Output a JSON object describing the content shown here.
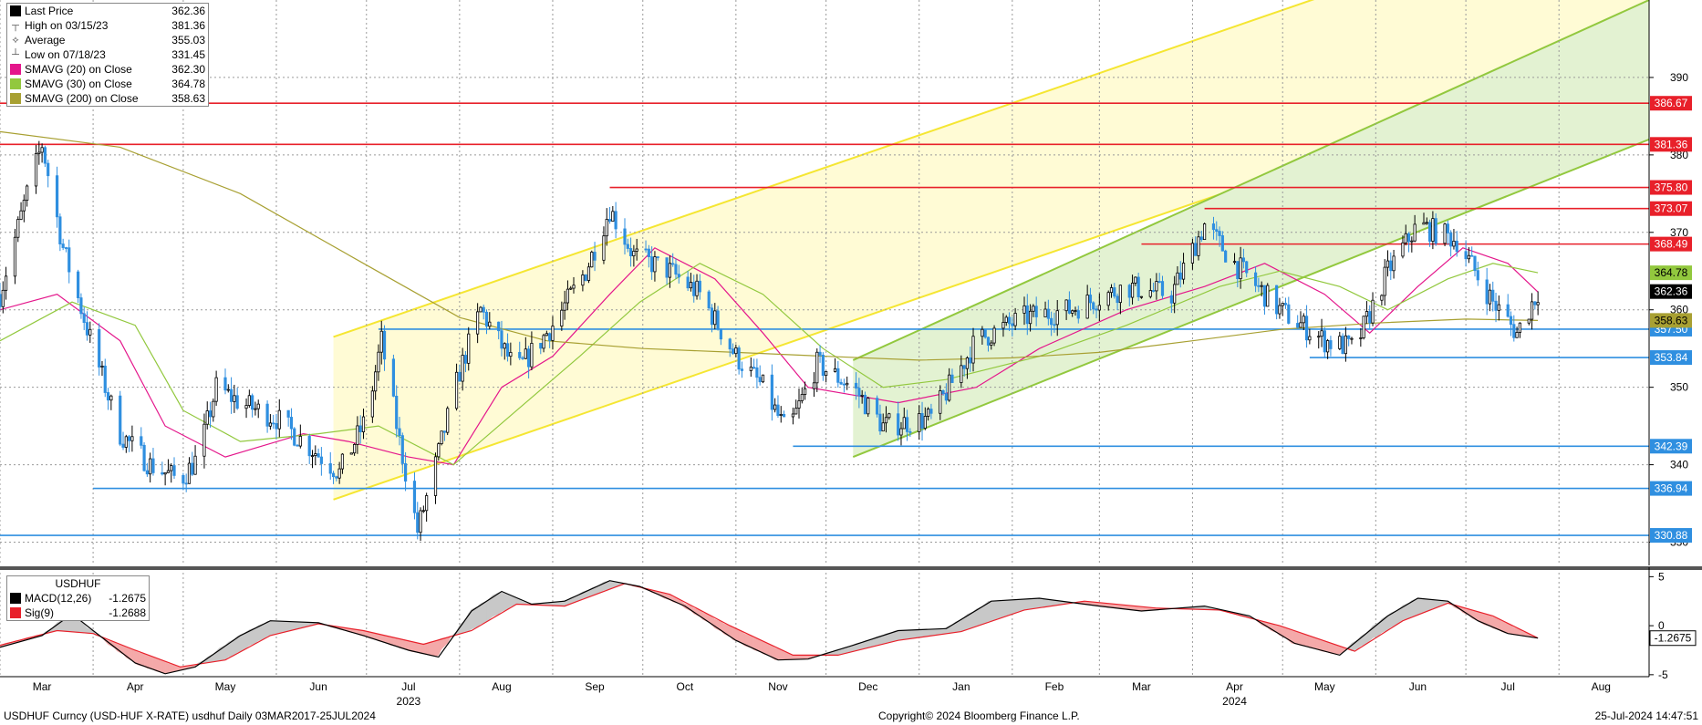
{
  "chart_data": {
    "type": "candlestick",
    "x_range": [
      "2023-03-01",
      "2024-08-31"
    ],
    "y_range": [
      327,
      400
    ],
    "y_ticks": [
      390,
      380,
      370,
      360,
      350,
      340,
      330
    ],
    "month_labels": [
      {
        "label": "Mar",
        "date": "2023-03-15"
      },
      {
        "label": "Apr",
        "date": "2023-04-15"
      },
      {
        "label": "May",
        "date": "2023-05-15"
      },
      {
        "label": "Jun",
        "date": "2023-06-15"
      },
      {
        "label": "Jul",
        "date": "2023-07-15"
      },
      {
        "label": "Aug",
        "date": "2023-08-15"
      },
      {
        "label": "Sep",
        "date": "2023-09-15"
      },
      {
        "label": "Oct",
        "date": "2023-10-15"
      },
      {
        "label": "Nov",
        "date": "2023-11-15"
      },
      {
        "label": "Dec",
        "date": "2023-12-15"
      },
      {
        "label": "Jan",
        "date": "2024-01-15"
      },
      {
        "label": "Feb",
        "date": "2024-02-15"
      },
      {
        "label": "Mar",
        "date": "2024-03-15"
      },
      {
        "label": "Apr",
        "date": "2024-04-15"
      },
      {
        "label": "May",
        "date": "2024-05-15"
      },
      {
        "label": "Jun",
        "date": "2024-06-15"
      },
      {
        "label": "Jul",
        "date": "2024-07-15"
      },
      {
        "label": "Aug",
        "date": "2024-08-15"
      }
    ],
    "year_labels": [
      {
        "label": "2023",
        "date": "2023-07-15"
      },
      {
        "label": "2024",
        "date": "2024-04-15"
      }
    ],
    "price_path": [
      [
        "2023-03-01",
        362
      ],
      [
        "2023-03-10",
        375
      ],
      [
        "2023-03-15",
        381.36
      ],
      [
        "2023-03-22",
        368
      ],
      [
        "2023-04-01",
        355
      ],
      [
        "2023-04-10",
        344
      ],
      [
        "2023-04-20",
        340
      ],
      [
        "2023-04-30",
        338
      ],
      [
        "2023-05-06",
        341
      ],
      [
        "2023-05-12",
        350
      ],
      [
        "2023-05-20",
        348
      ],
      [
        "2023-06-01",
        346
      ],
      [
        "2023-06-10",
        343
      ],
      [
        "2023-06-22",
        339
      ],
      [
        "2023-07-01",
        346
      ],
      [
        "2023-07-06",
        356
      ],
      [
        "2023-07-12",
        343
      ],
      [
        "2023-07-18",
        331.45
      ],
      [
        "2023-07-24",
        340
      ],
      [
        "2023-08-01",
        352
      ],
      [
        "2023-08-08",
        360
      ],
      [
        "2023-08-20",
        352
      ],
      [
        "2023-09-01",
        358
      ],
      [
        "2023-09-12",
        365
      ],
      [
        "2023-09-20",
        373
      ],
      [
        "2023-09-28",
        367
      ],
      [
        "2023-10-10",
        365
      ],
      [
        "2023-10-20",
        362
      ],
      [
        "2023-11-01",
        354
      ],
      [
        "2023-11-10",
        350
      ],
      [
        "2023-11-18",
        344
      ],
      [
        "2023-11-28",
        353
      ],
      [
        "2023-12-10",
        350
      ],
      [
        "2023-12-20",
        345
      ],
      [
        "2024-01-05",
        346
      ],
      [
        "2024-01-20",
        356
      ],
      [
        "2024-02-05",
        359
      ],
      [
        "2024-02-20",
        360
      ],
      [
        "2024-03-10",
        363
      ],
      [
        "2024-03-25",
        362
      ],
      [
        "2024-04-05",
        371
      ],
      [
        "2024-04-15",
        366
      ],
      [
        "2024-04-30",
        360
      ],
      [
        "2024-05-15",
        356
      ],
      [
        "2024-05-25",
        355
      ],
      [
        "2024-06-05",
        365
      ],
      [
        "2024-06-15",
        371
      ],
      [
        "2024-06-28",
        369
      ],
      [
        "2024-07-10",
        361
      ],
      [
        "2024-07-18",
        357
      ],
      [
        "2024-07-25",
        362.36
      ]
    ],
    "series": [
      {
        "name": "SMAVG (20) on Close",
        "color": "#e4168b",
        "values": [
          [
            "2023-03-01",
            360
          ],
          [
            "2023-03-20",
            362
          ],
          [
            "2023-04-10",
            356
          ],
          [
            "2023-04-25",
            345
          ],
          [
            "2023-05-15",
            341
          ],
          [
            "2023-06-10",
            344
          ],
          [
            "2023-06-25",
            343
          ],
          [
            "2023-07-15",
            341
          ],
          [
            "2023-07-30",
            340
          ],
          [
            "2023-08-15",
            350
          ],
          [
            "2023-09-01",
            354
          ],
          [
            "2023-09-20",
            362
          ],
          [
            "2023-10-05",
            368
          ],
          [
            "2023-10-25",
            364
          ],
          [
            "2023-11-10",
            357
          ],
          [
            "2023-11-25",
            350
          ],
          [
            "2023-12-10",
            349
          ],
          [
            "2023-12-25",
            348
          ],
          [
            "2024-01-20",
            350
          ],
          [
            "2024-02-10",
            355
          ],
          [
            "2024-03-10",
            360
          ],
          [
            "2024-04-05",
            363
          ],
          [
            "2024-04-25",
            366
          ],
          [
            "2024-05-15",
            362
          ],
          [
            "2024-05-30",
            357
          ],
          [
            "2024-06-15",
            363
          ],
          [
            "2024-06-30",
            368
          ],
          [
            "2024-07-15",
            366
          ],
          [
            "2024-07-25",
            362.3
          ]
        ]
      },
      {
        "name": "SMAVG (30) on Close",
        "color": "#92c83e",
        "values": [
          [
            "2023-03-01",
            356
          ],
          [
            "2023-03-25",
            361
          ],
          [
            "2023-04-15",
            358
          ],
          [
            "2023-05-01",
            347
          ],
          [
            "2023-05-20",
            343
          ],
          [
            "2023-06-15",
            344
          ],
          [
            "2023-07-05",
            345
          ],
          [
            "2023-07-30",
            340
          ],
          [
            "2023-08-20",
            347
          ],
          [
            "2023-09-10",
            354
          ],
          [
            "2023-09-30",
            361
          ],
          [
            "2023-10-20",
            366
          ],
          [
            "2023-11-10",
            362
          ],
          [
            "2023-11-30",
            355
          ],
          [
            "2023-12-20",
            350
          ],
          [
            "2024-01-10",
            351
          ],
          [
            "2024-02-10",
            354
          ],
          [
            "2024-03-10",
            358
          ],
          [
            "2024-04-10",
            363
          ],
          [
            "2024-04-30",
            365
          ],
          [
            "2024-05-20",
            363
          ],
          [
            "2024-06-05",
            360
          ],
          [
            "2024-06-25",
            364
          ],
          [
            "2024-07-10",
            366
          ],
          [
            "2024-07-25",
            364.78
          ]
        ]
      },
      {
        "name": "SMAVG (200) on Close",
        "color": "#a8a032",
        "values": [
          [
            "2023-03-01",
            383
          ],
          [
            "2023-04-10",
            381
          ],
          [
            "2023-05-20",
            375
          ],
          [
            "2023-06-30",
            366
          ],
          [
            "2023-08-01",
            359
          ],
          [
            "2023-08-30",
            356
          ],
          [
            "2023-10-01",
            355
          ],
          [
            "2023-11-01",
            354.5
          ],
          [
            "2023-12-01",
            354
          ],
          [
            "2024-01-01",
            353.5
          ],
          [
            "2024-02-01",
            353.8
          ],
          [
            "2024-03-01",
            354.5
          ],
          [
            "2024-04-01",
            356
          ],
          [
            "2024-05-01",
            357.5
          ],
          [
            "2024-06-01",
            358.3
          ],
          [
            "2024-07-01",
            358.8
          ],
          [
            "2024-07-25",
            358.63
          ]
        ]
      }
    ],
    "horizontal_levels": [
      {
        "value": 386.67,
        "color": "#e8202a",
        "label": "386.67",
        "start": "2023-03-01"
      },
      {
        "value": 381.36,
        "color": "#e8202a",
        "label": "381.36",
        "start": "2023-03-01"
      },
      {
        "value": 375.8,
        "color": "#e8202a",
        "label": "375.80",
        "start": "2023-09-20"
      },
      {
        "value": 373.07,
        "color": "#e8202a",
        "label": "373.07",
        "start": "2024-04-05"
      },
      {
        "value": 368.49,
        "color": "#e8202a",
        "label": "368.49",
        "start": "2024-03-15"
      },
      {
        "value": 357.5,
        "color": "#2f8fe0",
        "label": "357.50",
        "start": "2023-07-05"
      },
      {
        "value": 353.84,
        "color": "#2f8fe0",
        "label": "353.84",
        "start": "2024-05-10"
      },
      {
        "value": 342.39,
        "color": "#2f8fe0",
        "label": "342.39",
        "start": "2023-11-20"
      },
      {
        "value": 336.94,
        "color": "#2f8fe0",
        "label": "336.94",
        "start": "2023-04-01"
      },
      {
        "value": 330.88,
        "color": "#2f8fe0",
        "label": "330.88",
        "start": "2023-03-01"
      }
    ],
    "axis_badges": [
      {
        "value": 364.78,
        "label": "364.78",
        "bg": "#92c83e",
        "fg": "#000000"
      },
      {
        "value": 362.36,
        "label": "362.36",
        "bg": "#000000",
        "fg": "#ffffff"
      },
      {
        "value": 358.63,
        "label": "358.63",
        "bg": "#a8a032",
        "fg": "#000000"
      }
    ],
    "channels": [
      {
        "name": "yellow-channel",
        "color": "#f5e632",
        "fill": "#fffbd5",
        "lower": [
          [
            "2023-06-20",
            335.5
          ],
          [
            "2024-08-31",
            394
          ]
        ],
        "upper": [
          [
            "2023-06-20",
            356.5
          ],
          [
            "2024-08-31",
            415
          ]
        ],
        "shade_start": "2023-06-20",
        "shade_end": "2024-08-31"
      },
      {
        "name": "green-channel",
        "color": "#92c83e",
        "fill": "#e3f2d2",
        "lower": [
          [
            "2023-12-10",
            341
          ],
          [
            "2024-08-31",
            382
          ]
        ],
        "upper": [
          [
            "2023-12-10",
            353.5
          ],
          [
            "2024-08-31",
            400
          ]
        ],
        "shade_start": "2023-12-10",
        "shade_end": "2024-08-31"
      }
    ],
    "legend": [
      {
        "label": "Last Price",
        "value": "362.36",
        "icon": "black-square",
        "color": "#000000"
      },
      {
        "label": "High on 03/15/23",
        "value": "381.36",
        "icon": "high-marker",
        "color": "#555555"
      },
      {
        "label": "Average",
        "value": "355.03",
        "icon": "average-marker",
        "color": "#555555"
      },
      {
        "label": "Low on 07/18/23",
        "value": "331.45",
        "icon": "low-marker",
        "color": "#555555"
      },
      {
        "label": "SMAVG (20)  on Close",
        "value": "362.30",
        "icon": "magenta-square",
        "color": "#e4168b"
      },
      {
        "label": "SMAVG (30)  on Close",
        "value": "364.78",
        "icon": "green-square",
        "color": "#92c83e"
      },
      {
        "label": "SMAVG (200)  on Close",
        "value": "358.63",
        "icon": "olive-square",
        "color": "#a8a032"
      }
    ]
  },
  "macd_panel": {
    "y_range": [
      -5.2,
      5.5
    ],
    "y_ticks": [
      5,
      0,
      -5
    ],
    "current_badge": "-1.2675",
    "title": "USDHUF",
    "legend": [
      {
        "label": "MACD(12,26)",
        "value": "-1.2675",
        "icon": "black-square",
        "color": "#000000"
      },
      {
        "label": "Sig(9)",
        "value": "-1.2688",
        "icon": "red-square",
        "color": "#e8202a"
      }
    ],
    "macd": [
      [
        "2023-03-01",
        -2.2
      ],
      [
        "2023-03-15",
        -1.0
      ],
      [
        "2023-03-25",
        1.2
      ],
      [
        "2023-04-01",
        -0.5
      ],
      [
        "2023-04-15",
        -3.8
      ],
      [
        "2023-04-25",
        -4.9
      ],
      [
        "2023-05-05",
        -4.2
      ],
      [
        "2023-05-20",
        -1.0
      ],
      [
        "2023-05-30",
        0.5
      ],
      [
        "2023-06-15",
        0.3
      ],
      [
        "2023-06-30",
        -1.0
      ],
      [
        "2023-07-15",
        -2.5
      ],
      [
        "2023-07-25",
        -3.2
      ],
      [
        "2023-08-05",
        1.5
      ],
      [
        "2023-08-15",
        3.5
      ],
      [
        "2023-08-25",
        2.2
      ],
      [
        "2023-09-05",
        2.5
      ],
      [
        "2023-09-20",
        4.6
      ],
      [
        "2023-09-30",
        4.0
      ],
      [
        "2023-10-15",
        2.0
      ],
      [
        "2023-11-01",
        -1.5
      ],
      [
        "2023-11-15",
        -3.5
      ],
      [
        "2023-11-25",
        -3.4
      ],
      [
        "2023-12-10",
        -2.0
      ],
      [
        "2023-12-25",
        -0.5
      ],
      [
        "2024-01-10",
        -0.3
      ],
      [
        "2024-01-25",
        2.5
      ],
      [
        "2024-02-10",
        2.8
      ],
      [
        "2024-03-01",
        2.0
      ],
      [
        "2024-03-15",
        1.5
      ],
      [
        "2024-04-05",
        2.0
      ],
      [
        "2024-04-20",
        1.0
      ],
      [
        "2024-05-05",
        -1.8
      ],
      [
        "2024-05-20",
        -3.0
      ],
      [
        "2024-06-05",
        1.0
      ],
      [
        "2024-06-15",
        2.8
      ],
      [
        "2024-06-25",
        2.5
      ],
      [
        "2024-07-05",
        0.5
      ],
      [
        "2024-07-15",
        -0.8
      ],
      [
        "2024-07-25",
        -1.2675
      ]
    ],
    "signal": [
      [
        "2023-03-01",
        -2.0
      ],
      [
        "2023-03-20",
        -0.5
      ],
      [
        "2023-04-01",
        -0.8
      ],
      [
        "2023-04-15",
        -2.5
      ],
      [
        "2023-04-30",
        -4.2
      ],
      [
        "2023-05-15",
        -3.5
      ],
      [
        "2023-05-30",
        -1.0
      ],
      [
        "2023-06-15",
        0.2
      ],
      [
        "2023-06-30",
        -0.5
      ],
      [
        "2023-07-20",
        -1.9
      ],
      [
        "2023-08-05",
        -0.5
      ],
      [
        "2023-08-20",
        2.2
      ],
      [
        "2023-09-05",
        2.0
      ],
      [
        "2023-09-25",
        4.3
      ],
      [
        "2023-10-10",
        3.2
      ],
      [
        "2023-10-30",
        0.0
      ],
      [
        "2023-11-20",
        -3.0
      ],
      [
        "2023-12-05",
        -3.0
      ],
      [
        "2023-12-25",
        -1.5
      ],
      [
        "2024-01-15",
        -0.6
      ],
      [
        "2024-02-05",
        1.6
      ],
      [
        "2024-02-25",
        2.5
      ],
      [
        "2024-03-20",
        1.8
      ],
      [
        "2024-04-10",
        1.6
      ],
      [
        "2024-04-30",
        0.0
      ],
      [
        "2024-05-25",
        -2.6
      ],
      [
        "2024-06-10",
        0.5
      ],
      [
        "2024-06-25",
        2.3
      ],
      [
        "2024-07-10",
        1.0
      ],
      [
        "2024-07-25",
        -1.2688
      ]
    ]
  },
  "footer": {
    "left": "USDHUF Curncy (USD-HUF X-RATE) usdhuf  Daily 03MAR2017-25JUL2024",
    "center": "Copyright© 2024 Bloomberg Finance L.P.",
    "right": "25-Jul-2024 14:47:51"
  }
}
